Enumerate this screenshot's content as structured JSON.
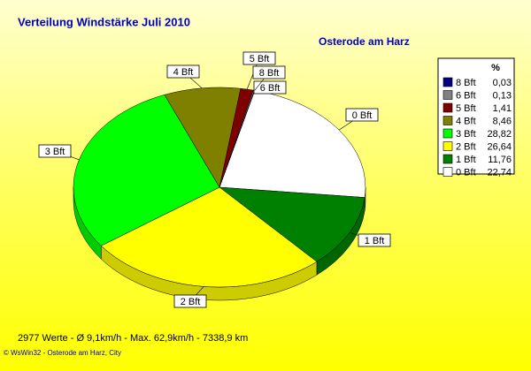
{
  "chart_data": {
    "type": "pie",
    "title": "Verteilung Windstärke  Juli 2010",
    "subtitle": "Osterode am Harz",
    "legend_title": "%",
    "categories": [
      "8 Bft",
      "6 Bft",
      "5 Bft",
      "4 Bft",
      "3 Bft",
      "2 Bft",
      "1 Bft",
      "0 Bft"
    ],
    "values": [
      0.03,
      0.13,
      1.41,
      8.46,
      28.82,
      26.64,
      11.76,
      22.74
    ],
    "value_labels": [
      "0,03",
      "0,13",
      "1,41",
      "8,46",
      "28,82",
      "26,64",
      "11,76",
      "22,74"
    ],
    "colors": [
      "#000080",
      "#808080",
      "#800000",
      "#808000",
      "#00ff00",
      "#ffff00",
      "#008000",
      "#ffffff"
    ],
    "legend": "right",
    "footer": "2977 Werte   -   Ø 9,1km/h  -  Max. 62,9km/h   -   7338,9 km",
    "credit": "© WsWin32  -  Osterode am Harz, City"
  }
}
